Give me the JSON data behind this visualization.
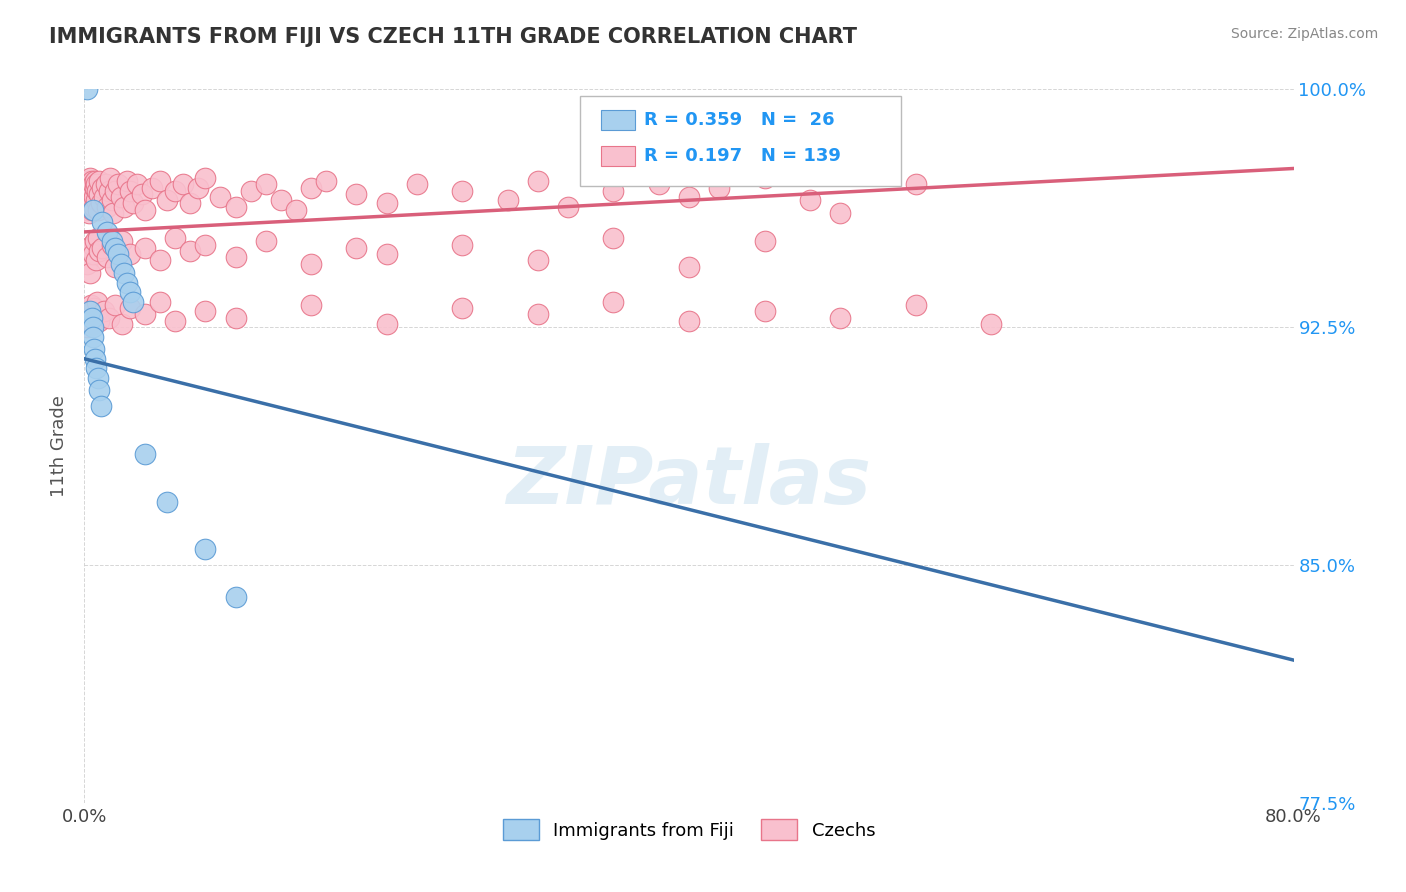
{
  "title": "IMMIGRANTS FROM FIJI VS CZECH 11TH GRADE CORRELATION CHART",
  "source": "Source: ZipAtlas.com",
  "ylabel": "11th Grade",
  "xlim": [
    0.0,
    80.0
  ],
  "ylim": [
    77.5,
    100.0
  ],
  "fiji_R": 0.359,
  "fiji_N": 26,
  "czech_R": 0.197,
  "czech_N": 139,
  "fiji_color": "#a8d0ee",
  "czech_color": "#f9c0ce",
  "fiji_edge_color": "#5b9bd5",
  "czech_edge_color": "#e8758a",
  "fiji_line_color": "#3a6fa8",
  "czech_line_color": "#d95f7a",
  "title_color": "#333333",
  "source_color": "#888888",
  "watermark_color": "#d0e4f0",
  "legend_color": "#2196F3",
  "fiji_scatter_x": [
    0.18,
    0.55,
    1.2,
    1.5,
    1.8,
    2.0,
    2.2,
    2.4,
    2.6,
    2.8,
    3.0,
    3.2,
    0.4,
    0.5,
    0.55,
    0.6,
    0.65,
    0.7,
    0.8,
    0.9,
    1.0,
    1.1,
    4.0,
    5.5,
    8.0,
    10.0
  ],
  "fiji_scatter_y": [
    100.0,
    96.2,
    95.8,
    95.5,
    95.2,
    95.0,
    94.8,
    94.5,
    94.2,
    93.9,
    93.6,
    93.3,
    93.0,
    92.8,
    92.5,
    92.2,
    91.8,
    91.5,
    91.2,
    90.9,
    90.5,
    90.0,
    88.5,
    87.0,
    85.5,
    84.0
  ],
  "czech_scatter_x": [
    0.1,
    0.15,
    0.18,
    0.2,
    0.22,
    0.25,
    0.28,
    0.3,
    0.32,
    0.35,
    0.38,
    0.4,
    0.42,
    0.45,
    0.48,
    0.5,
    0.52,
    0.55,
    0.58,
    0.6,
    0.62,
    0.65,
    0.68,
    0.7,
    0.75,
    0.8,
    0.85,
    0.9,
    0.95,
    1.0,
    1.1,
    1.2,
    1.3,
    1.4,
    1.5,
    1.6,
    1.7,
    1.8,
    1.9,
    2.0,
    2.2,
    2.4,
    2.6,
    2.8,
    3.0,
    3.2,
    3.5,
    3.8,
    4.0,
    4.5,
    5.0,
    5.5,
    6.0,
    6.5,
    7.0,
    7.5,
    8.0,
    9.0,
    10.0,
    11.0,
    12.0,
    13.0,
    14.0,
    15.0,
    16.0,
    18.0,
    20.0,
    22.0,
    25.0,
    28.0,
    30.0,
    32.0,
    35.0,
    38.0,
    40.0,
    42.0,
    45.0,
    48.0,
    50.0,
    55.0,
    0.2,
    0.3,
    0.4,
    0.5,
    0.6,
    0.7,
    0.8,
    0.9,
    1.0,
    1.2,
    1.5,
    1.8,
    2.0,
    2.5,
    3.0,
    4.0,
    5.0,
    6.0,
    7.0,
    8.0,
    10.0,
    12.0,
    15.0,
    18.0,
    20.0,
    25.0,
    30.0,
    35.0,
    40.0,
    45.0,
    0.15,
    0.25,
    0.35,
    0.45,
    0.55,
    0.65,
    0.75,
    0.85,
    1.0,
    1.3,
    1.6,
    2.0,
    2.5,
    3.0,
    4.0,
    5.0,
    6.0,
    8.0,
    10.0,
    15.0,
    20.0,
    25.0,
    30.0,
    35.0,
    40.0,
    45.0,
    50.0,
    55.0,
    60.0
  ],
  "czech_scatter_y": [
    96.8,
    96.5,
    97.0,
    96.2,
    96.8,
    97.1,
    96.4,
    96.9,
    96.1,
    96.7,
    97.2,
    96.3,
    96.8,
    97.0,
    96.5,
    96.2,
    97.1,
    96.8,
    96.4,
    97.0,
    96.6,
    96.3,
    97.1,
    96.9,
    96.5,
    97.0,
    96.8,
    96.2,
    96.7,
    97.1,
    96.4,
    96.9,
    96.6,
    97.0,
    96.3,
    96.8,
    97.2,
    96.5,
    96.1,
    96.8,
    97.0,
    96.6,
    96.3,
    97.1,
    96.8,
    96.4,
    97.0,
    96.7,
    96.2,
    96.9,
    97.1,
    96.5,
    96.8,
    97.0,
    96.4,
    96.9,
    97.2,
    96.6,
    96.3,
    96.8,
    97.0,
    96.5,
    96.2,
    96.9,
    97.1,
    96.7,
    96.4,
    97.0,
    96.8,
    96.5,
    97.1,
    96.3,
    96.8,
    97.0,
    96.6,
    96.9,
    97.2,
    96.5,
    96.1,
    97.0,
    94.5,
    95.0,
    94.2,
    95.1,
    94.8,
    95.2,
    94.6,
    95.3,
    94.9,
    95.0,
    94.7,
    95.1,
    94.4,
    95.2,
    94.8,
    95.0,
    94.6,
    95.3,
    94.9,
    95.1,
    94.7,
    95.2,
    94.5,
    95.0,
    94.8,
    95.1,
    94.6,
    95.3,
    94.4,
    95.2,
    92.5,
    93.0,
    92.8,
    93.2,
    92.6,
    93.1,
    92.9,
    93.3,
    92.7,
    93.0,
    92.8,
    93.2,
    92.6,
    93.1,
    92.9,
    93.3,
    92.7,
    93.0,
    92.8,
    93.2,
    92.6,
    93.1,
    92.9,
    93.3,
    92.7,
    93.0,
    92.8,
    93.2,
    92.6
  ],
  "fiji_trendline_x": [
    0.0,
    80.0
  ],
  "fiji_trendline_y": [
    91.5,
    82.0
  ],
  "czech_trendline_x": [
    0.0,
    80.0
  ],
  "czech_trendline_y": [
    95.5,
    97.5
  ]
}
